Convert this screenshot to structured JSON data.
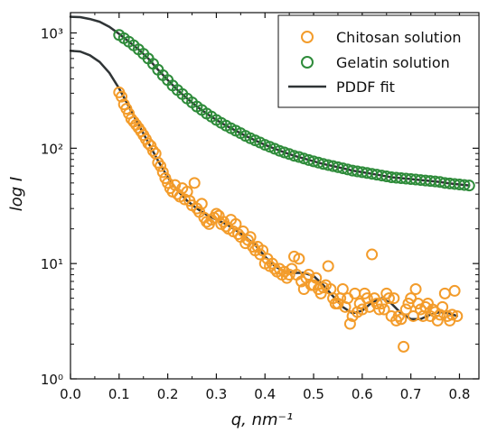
{
  "chart_data": {
    "type": "scatter",
    "xlabel": "q, nm⁻¹",
    "ylabel": "log I",
    "x_scale": "linear",
    "y_scale": "log",
    "xlim": [
      0.0,
      0.84
    ],
    "ylim": [
      1,
      1500
    ],
    "x_ticks": [
      0.0,
      0.1,
      0.2,
      0.3,
      0.4,
      0.5,
      0.6,
      0.7,
      0.8
    ],
    "x_tick_labels": [
      "0.0",
      "0.1",
      "0.2",
      "0.3",
      "0.4",
      "0.5",
      "0.6",
      "0.7",
      "0.8"
    ],
    "y_ticks": [
      1,
      10,
      100,
      1000
    ],
    "y_tick_labels": [
      "10⁰",
      "10¹",
      "10²",
      "10³"
    ],
    "legend_position": "top-right",
    "grid": false,
    "series": [
      {
        "name": "Chitosan solution",
        "marker": "open-circle",
        "color": "#f39c2b",
        "points": [
          [
            0.1,
            305
          ],
          [
            0.105,
            280
          ],
          [
            0.11,
            240
          ],
          [
            0.115,
            220
          ],
          [
            0.12,
            200
          ],
          [
            0.125,
            180
          ],
          [
            0.13,
            170
          ],
          [
            0.135,
            160
          ],
          [
            0.14,
            150
          ],
          [
            0.145,
            140
          ],
          [
            0.15,
            130
          ],
          [
            0.155,
            120
          ],
          [
            0.16,
            110
          ],
          [
            0.165,
            105
          ],
          [
            0.17,
            95
          ],
          [
            0.175,
            90
          ],
          [
            0.18,
            75
          ],
          [
            0.185,
            70
          ],
          [
            0.19,
            62
          ],
          [
            0.195,
            55
          ],
          [
            0.2,
            50
          ],
          [
            0.205,
            45
          ],
          [
            0.21,
            42
          ],
          [
            0.215,
            48
          ],
          [
            0.22,
            40
          ],
          [
            0.225,
            38
          ],
          [
            0.23,
            45
          ],
          [
            0.235,
            36
          ],
          [
            0.24,
            42
          ],
          [
            0.245,
            35
          ],
          [
            0.25,
            32
          ],
          [
            0.255,
            50
          ],
          [
            0.26,
            30
          ],
          [
            0.265,
            28
          ],
          [
            0.27,
            33
          ],
          [
            0.275,
            25
          ],
          [
            0.28,
            23
          ],
          [
            0.285,
            22
          ],
          [
            0.29,
            24
          ],
          [
            0.295,
            25
          ],
          [
            0.3,
            27
          ],
          [
            0.305,
            26
          ],
          [
            0.31,
            22
          ],
          [
            0.315,
            23
          ],
          [
            0.32,
            21
          ],
          [
            0.325,
            20
          ],
          [
            0.33,
            24
          ],
          [
            0.335,
            19
          ],
          [
            0.34,
            22
          ],
          [
            0.345,
            18
          ],
          [
            0.35,
            17
          ],
          [
            0.355,
            19
          ],
          [
            0.36,
            15
          ],
          [
            0.365,
            16
          ],
          [
            0.37,
            17
          ],
          [
            0.375,
            14
          ],
          [
            0.38,
            13
          ],
          [
            0.385,
            14
          ],
          [
            0.39,
            12
          ],
          [
            0.395,
            13
          ],
          [
            0.4,
            10
          ],
          [
            0.405,
            11
          ],
          [
            0.41,
            9.5
          ],
          [
            0.415,
            10
          ],
          [
            0.42,
            9
          ],
          [
            0.425,
            8.5
          ],
          [
            0.43,
            9
          ],
          [
            0.435,
            8
          ],
          [
            0.44,
            8.5
          ],
          [
            0.445,
            7.5
          ],
          [
            0.45,
            8
          ],
          [
            0.455,
            9
          ],
          [
            0.46,
            11.5
          ],
          [
            0.465,
            8
          ],
          [
            0.47,
            11
          ],
          [
            0.475,
            7
          ],
          [
            0.48,
            6
          ],
          [
            0.485,
            7.5
          ],
          [
            0.49,
            8
          ],
          [
            0.495,
            6.5
          ],
          [
            0.5,
            6.5
          ],
          [
            0.505,
            7.5
          ],
          [
            0.51,
            6
          ],
          [
            0.515,
            5.5
          ],
          [
            0.52,
            6.2
          ],
          [
            0.525,
            6.5
          ],
          [
            0.53,
            9.5
          ],
          [
            0.535,
            6
          ],
          [
            0.54,
            5
          ],
          [
            0.545,
            4.5
          ],
          [
            0.55,
            4.5
          ],
          [
            0.555,
            5
          ],
          [
            0.56,
            6
          ],
          [
            0.565,
            4.2
          ],
          [
            0.57,
            5
          ],
          [
            0.575,
            3
          ],
          [
            0.58,
            3.5
          ],
          [
            0.585,
            5.5
          ],
          [
            0.59,
            3.8
          ],
          [
            0.595,
            4.5
          ],
          [
            0.6,
            4
          ],
          [
            0.605,
            5.5
          ],
          [
            0.61,
            5
          ],
          [
            0.615,
            4.2
          ],
          [
            0.62,
            12
          ],
          [
            0.625,
            5
          ],
          [
            0.63,
            4.5
          ],
          [
            0.635,
            4
          ],
          [
            0.64,
            4.5
          ],
          [
            0.645,
            4
          ],
          [
            0.65,
            5.5
          ],
          [
            0.655,
            5
          ],
          [
            0.66,
            3.5
          ],
          [
            0.665,
            5
          ],
          [
            0.67,
            3.2
          ],
          [
            0.675,
            3.5
          ],
          [
            0.68,
            3.3
          ],
          [
            0.685,
            1.9
          ],
          [
            0.69,
            4
          ],
          [
            0.695,
            4.5
          ],
          [
            0.7,
            5
          ],
          [
            0.705,
            3.5
          ],
          [
            0.71,
            6
          ],
          [
            0.715,
            4.5
          ],
          [
            0.72,
            4
          ],
          [
            0.725,
            3.5
          ],
          [
            0.73,
            4.2
          ],
          [
            0.735,
            4.5
          ],
          [
            0.74,
            3.5
          ],
          [
            0.745,
            4
          ],
          [
            0.75,
            3.8
          ],
          [
            0.755,
            3.2
          ],
          [
            0.76,
            3.6
          ],
          [
            0.765,
            4.2
          ],
          [
            0.77,
            5.5
          ],
          [
            0.775,
            3.5
          ],
          [
            0.78,
            3.2
          ],
          [
            0.785,
            3.6
          ],
          [
            0.79,
            5.8
          ],
          [
            0.795,
            3.5
          ]
        ]
      },
      {
        "name": "Gelatin solution",
        "marker": "open-circle",
        "color": "#2e8b3a",
        "points": [
          [
            0.1,
            960
          ],
          [
            0.11,
            900
          ],
          [
            0.12,
            840
          ],
          [
            0.13,
            780
          ],
          [
            0.14,
            720
          ],
          [
            0.15,
            660
          ],
          [
            0.16,
            600
          ],
          [
            0.17,
            540
          ],
          [
            0.18,
            480
          ],
          [
            0.19,
            430
          ],
          [
            0.2,
            390
          ],
          [
            0.21,
            350
          ],
          [
            0.22,
            320
          ],
          [
            0.23,
            295
          ],
          [
            0.24,
            270
          ],
          [
            0.25,
            250
          ],
          [
            0.26,
            230
          ],
          [
            0.27,
            215
          ],
          [
            0.28,
            200
          ],
          [
            0.29,
            188
          ],
          [
            0.3,
            176
          ],
          [
            0.31,
            166
          ],
          [
            0.32,
            157
          ],
          [
            0.33,
            149
          ],
          [
            0.34,
            142
          ],
          [
            0.35,
            135
          ],
          [
            0.36,
            128
          ],
          [
            0.37,
            122
          ],
          [
            0.38,
            117
          ],
          [
            0.39,
            112
          ],
          [
            0.4,
            107
          ],
          [
            0.41,
            103
          ],
          [
            0.42,
            99
          ],
          [
            0.43,
            95
          ],
          [
            0.44,
            92
          ],
          [
            0.45,
            89
          ],
          [
            0.46,
            86
          ],
          [
            0.47,
            84
          ],
          [
            0.48,
            81.5
          ],
          [
            0.49,
            79
          ],
          [
            0.5,
            77
          ],
          [
            0.51,
            75
          ],
          [
            0.52,
            73
          ],
          [
            0.53,
            71.5
          ],
          [
            0.54,
            70
          ],
          [
            0.55,
            68.5
          ],
          [
            0.56,
            67
          ],
          [
            0.57,
            65.5
          ],
          [
            0.58,
            64
          ],
          [
            0.59,
            63
          ],
          [
            0.6,
            62
          ],
          [
            0.61,
            61
          ],
          [
            0.62,
            60
          ],
          [
            0.63,
            59
          ],
          [
            0.64,
            58
          ],
          [
            0.65,
            57
          ],
          [
            0.66,
            56
          ],
          [
            0.67,
            55.5
          ],
          [
            0.68,
            55
          ],
          [
            0.69,
            54.5
          ],
          [
            0.7,
            54
          ],
          [
            0.71,
            53.5
          ],
          [
            0.72,
            53
          ],
          [
            0.73,
            52.5
          ],
          [
            0.74,
            52
          ],
          [
            0.75,
            51.5
          ],
          [
            0.76,
            51
          ],
          [
            0.77,
            50
          ],
          [
            0.78,
            49.5
          ],
          [
            0.79,
            49
          ],
          [
            0.8,
            48.5
          ],
          [
            0.81,
            48
          ],
          [
            0.82,
            47.5
          ]
        ]
      }
    ],
    "fit_lines": [
      {
        "name": "PDDF fit",
        "color": "#2f3436",
        "points": [
          [
            0.0,
            1380
          ],
          [
            0.02,
            1370
          ],
          [
            0.04,
            1320
          ],
          [
            0.06,
            1250
          ],
          [
            0.08,
            1130
          ],
          [
            0.1,
            980
          ],
          [
            0.12,
            840
          ],
          [
            0.14,
            720
          ],
          [
            0.16,
            600
          ],
          [
            0.18,
            480
          ],
          [
            0.2,
            390
          ],
          [
            0.22,
            320
          ],
          [
            0.24,
            270
          ],
          [
            0.26,
            230
          ],
          [
            0.28,
            200
          ],
          [
            0.3,
            176
          ],
          [
            0.32,
            157
          ],
          [
            0.34,
            142
          ],
          [
            0.36,
            128
          ],
          [
            0.38,
            117
          ],
          [
            0.4,
            107
          ],
          [
            0.42,
            99
          ],
          [
            0.44,
            92
          ],
          [
            0.46,
            86
          ],
          [
            0.48,
            81.5
          ],
          [
            0.5,
            77
          ],
          [
            0.52,
            73
          ],
          [
            0.54,
            70
          ],
          [
            0.56,
            67
          ],
          [
            0.58,
            64
          ],
          [
            0.6,
            62
          ],
          [
            0.62,
            60
          ],
          [
            0.64,
            58
          ],
          [
            0.66,
            56
          ],
          [
            0.68,
            55
          ],
          [
            0.7,
            54
          ],
          [
            0.72,
            53
          ],
          [
            0.74,
            52
          ],
          [
            0.76,
            51
          ],
          [
            0.78,
            49.5
          ],
          [
            0.8,
            48.5
          ],
          [
            0.82,
            47.5
          ]
        ]
      },
      {
        "name": "",
        "color": "#2f3436",
        "points": [
          [
            0.0,
            700
          ],
          [
            0.02,
            690
          ],
          [
            0.04,
            640
          ],
          [
            0.06,
            560
          ],
          [
            0.08,
            450
          ],
          [
            0.1,
            330
          ],
          [
            0.12,
            230
          ],
          [
            0.14,
            160
          ],
          [
            0.16,
            112
          ],
          [
            0.18,
            78
          ],
          [
            0.2,
            56
          ],
          [
            0.22,
            43
          ],
          [
            0.24,
            35
          ],
          [
            0.26,
            30
          ],
          [
            0.28,
            26.5
          ],
          [
            0.3,
            24
          ],
          [
            0.32,
            22
          ],
          [
            0.34,
            19.5
          ],
          [
            0.36,
            17
          ],
          [
            0.38,
            14.5
          ],
          [
            0.4,
            11.5
          ],
          [
            0.42,
            9.5
          ],
          [
            0.44,
            8.5
          ],
          [
            0.46,
            8.3
          ],
          [
            0.48,
            8.3
          ],
          [
            0.5,
            7.8
          ],
          [
            0.52,
            6.5
          ],
          [
            0.54,
            5.2
          ],
          [
            0.56,
            4.2
          ],
          [
            0.58,
            3.7
          ],
          [
            0.6,
            3.9
          ],
          [
            0.62,
            4.6
          ],
          [
            0.64,
            5.0
          ],
          [
            0.66,
            4.5
          ],
          [
            0.68,
            3.7
          ],
          [
            0.7,
            3.3
          ],
          [
            0.72,
            3.3
          ],
          [
            0.74,
            3.6
          ],
          [
            0.76,
            3.8
          ],
          [
            0.78,
            3.7
          ],
          [
            0.795,
            3.5
          ]
        ]
      }
    ]
  }
}
